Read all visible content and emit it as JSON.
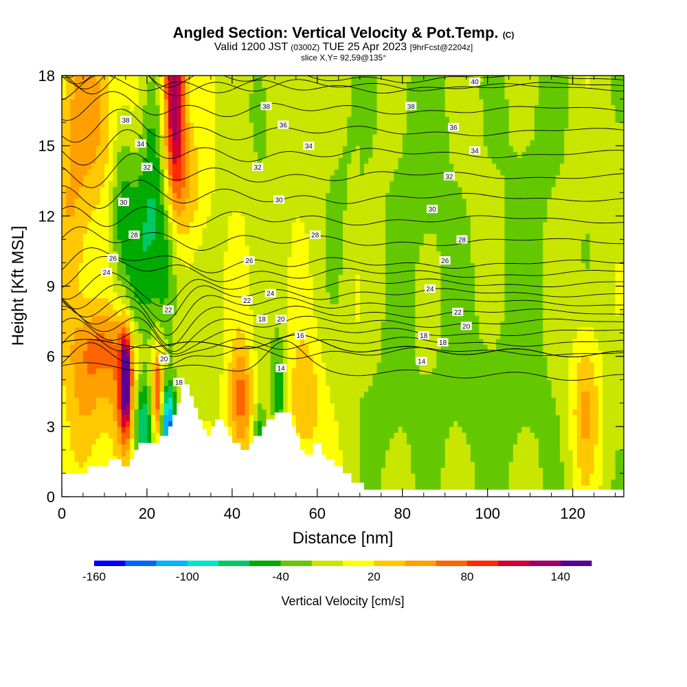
{
  "header": {
    "title_main": "Angled Section: Vertical Velocity & Pot.Temp.",
    "title_unit": "(C)",
    "valid_prefix": "Valid 1200 JST",
    "valid_utc": "(0300Z)",
    "valid_date": "TUE 25 Apr 2023",
    "forecast": "[9hrFcst@2204z]",
    "slice": "slice X,Y= 92,59@135°"
  },
  "chart_data": {
    "type": "heatmap",
    "xlabel": "Distance [nm]",
    "ylabel": "Height [Kft MSL]",
    "xlim": [
      0,
      132
    ],
    "ylim": [
      0,
      18
    ],
    "x_ticks": [
      "0",
      "20",
      "40",
      "60",
      "80",
      "100",
      "120"
    ],
    "x_tick_values": [
      0,
      20,
      40,
      60,
      80,
      100,
      120
    ],
    "y_ticks": [
      "0",
      "3",
      "6",
      "9",
      "12",
      "15",
      "18"
    ],
    "y_tick_values": [
      0,
      3,
      6,
      9,
      12,
      15,
      18
    ],
    "colorbar": {
      "label": "Vertical Velocity [cm/s]",
      "tick_labels": [
        "-160",
        "-100",
        "-40",
        "20",
        "80",
        "140"
      ],
      "tick_values": [
        -160,
        -100,
        -40,
        20,
        80,
        140
      ],
      "range": [
        -160,
        160
      ],
      "colors": [
        "#0000ff",
        "#0064ff",
        "#00b4ff",
        "#00e6c8",
        "#00c864",
        "#00aa00",
        "#64c800",
        "#c8e600",
        "#ffff00",
        "#ffc800",
        "#ffa000",
        "#ff6400",
        "#ff2800",
        "#d20032",
        "#a00064",
        "#5a0096"
      ]
    },
    "terrain": [
      [
        0,
        1
      ],
      [
        5,
        1
      ],
      [
        6,
        1.3
      ],
      [
        10,
        1.3
      ],
      [
        11,
        1.6
      ],
      [
        13,
        1.6
      ],
      [
        14,
        1.3
      ],
      [
        15,
        1.3
      ],
      [
        16,
        1.6
      ],
      [
        17,
        2
      ],
      [
        18,
        2.3
      ],
      [
        22,
        2.3
      ],
      [
        23,
        2.6
      ],
      [
        24,
        2.6
      ],
      [
        25,
        3
      ],
      [
        26,
        3.5
      ],
      [
        27,
        4
      ],
      [
        28,
        4.8
      ],
      [
        29,
        4.8
      ],
      [
        30,
        4.3
      ],
      [
        31,
        3.8
      ],
      [
        32,
        3.3
      ],
      [
        33,
        2.9
      ],
      [
        34,
        2.6
      ],
      [
        35,
        3
      ],
      [
        36,
        3.3
      ],
      [
        38,
        3
      ],
      [
        39,
        2.6
      ],
      [
        40,
        2.3
      ],
      [
        41,
        2.3
      ],
      [
        42,
        2
      ],
      [
        43,
        2
      ],
      [
        44,
        2.3
      ],
      [
        45,
        2.6
      ],
      [
        46,
        2.6
      ],
      [
        47,
        3
      ],
      [
        48,
        3.3
      ],
      [
        50,
        3.6
      ],
      [
        53,
        3.6
      ],
      [
        54,
        3
      ],
      [
        55,
        2.6
      ],
      [
        56,
        2
      ],
      [
        57,
        1.8
      ],
      [
        58,
        1.8
      ],
      [
        59,
        2.3
      ],
      [
        60,
        2.3
      ],
      [
        61,
        1.8
      ],
      [
        62,
        1.6
      ],
      [
        64,
        1.3
      ],
      [
        66,
        1
      ],
      [
        68,
        0.6
      ],
      [
        71,
        0.3
      ],
      [
        132,
        0.3
      ]
    ],
    "velocity_field": [
      {
        "x": 26.5,
        "y": 17.2,
        "sx": 1.8,
        "sy": 3.8,
        "v": 155
      },
      {
        "x": 8,
        "y": 16.5,
        "sx": 5,
        "sy": 2.8,
        "v": 55
      },
      {
        "x": 14,
        "y": 12.5,
        "sx": 2,
        "sy": 3,
        "v": -45
      },
      {
        "x": 18,
        "y": 10.5,
        "sx": 2.5,
        "sy": 2.8,
        "v": -35
      },
      {
        "x": 25,
        "y": 10.5,
        "sx": 2.5,
        "sy": 2.8,
        "v": -65
      },
      {
        "x": 21,
        "y": 15,
        "sx": 2,
        "sy": 3,
        "v": -40
      },
      {
        "x": 2,
        "y": 11,
        "sx": 3,
        "sy": 3,
        "v": 45
      },
      {
        "x": 15,
        "y": 5,
        "sx": 0.9,
        "sy": 1.4,
        "v": 150
      },
      {
        "x": 14.5,
        "y": 4,
        "sx": 2.5,
        "sy": 2.5,
        "v": 55
      },
      {
        "x": 19,
        "y": 3,
        "sx": 1.5,
        "sy": 1.4,
        "v": -90
      },
      {
        "x": 22.5,
        "y": 4.5,
        "sx": 1,
        "sy": 1.4,
        "v": 95
      },
      {
        "x": 25,
        "y": 3,
        "sx": 1.2,
        "sy": 1.3,
        "v": -120
      },
      {
        "x": 6,
        "y": 4.5,
        "sx": 4,
        "sy": 2.2,
        "v": 45
      },
      {
        "x": 42,
        "y": 4,
        "sx": 2,
        "sy": 1.8,
        "v": 75
      },
      {
        "x": 46.5,
        "y": 2.5,
        "sx": 1.2,
        "sy": 1,
        "v": -60
      },
      {
        "x": 51,
        "y": 4.5,
        "sx": 1.2,
        "sy": 1.5,
        "v": -55
      },
      {
        "x": 57,
        "y": 4,
        "sx": 3,
        "sy": 2,
        "v": 42
      },
      {
        "x": 123,
        "y": 4,
        "sx": 2.5,
        "sy": 2.5,
        "v": 55
      },
      {
        "x": 47,
        "y": 16.5,
        "sx": 2,
        "sy": 2.2,
        "v": -30
      },
      {
        "x": 65,
        "y": 15,
        "sx": 4,
        "sy": 4,
        "v": -18
      },
      {
        "x": 85,
        "y": 14,
        "sx": 6,
        "sy": 5,
        "v": -20
      },
      {
        "x": 110,
        "y": 13,
        "sx": 6,
        "sy": 6,
        "v": -15
      },
      {
        "x": 100,
        "y": 4,
        "sx": 10,
        "sy": 3,
        "v": -18
      },
      {
        "x": 76,
        "y": 3,
        "sx": 5,
        "sy": 2.5,
        "v": -15
      },
      {
        "x": 30,
        "y": 13,
        "sx": 3,
        "sy": 2,
        "v": 35
      },
      {
        "x": 9,
        "y": 6.5,
        "sx": 5,
        "sy": 1.2,
        "v": 40
      }
    ],
    "contour_lines": [
      14,
      16,
      18,
      20,
      22,
      24,
      26,
      28,
      30,
      32,
      34,
      36,
      38,
      40
    ],
    "contour_labels": [
      {
        "text": "40",
        "x": 97,
        "y": 17.75
      },
      {
        "text": "38",
        "x": 48,
        "y": 16.7
      },
      {
        "text": "38",
        "x": 82,
        "y": 16.7
      },
      {
        "text": "38",
        "x": 15,
        "y": 16.1
      },
      {
        "text": "36",
        "x": 52,
        "y": 15.9
      },
      {
        "text": "36",
        "x": 92,
        "y": 15.8
      },
      {
        "text": "34",
        "x": 18.5,
        "y": 15.1
      },
      {
        "text": "34",
        "x": 58,
        "y": 15
      },
      {
        "text": "34",
        "x": 97,
        "y": 14.8
      },
      {
        "text": "32",
        "x": 20,
        "y": 14.1
      },
      {
        "text": "32",
        "x": 46,
        "y": 14.1
      },
      {
        "text": "32",
        "x": 91,
        "y": 13.7
      },
      {
        "text": "30",
        "x": 14.5,
        "y": 12.6
      },
      {
        "text": "30",
        "x": 51,
        "y": 12.7
      },
      {
        "text": "30",
        "x": 87,
        "y": 12.3
      },
      {
        "text": "28",
        "x": 17,
        "y": 11.2
      },
      {
        "text": "28",
        "x": 59.5,
        "y": 11.2
      },
      {
        "text": "28",
        "x": 94,
        "y": 11
      },
      {
        "text": "26",
        "x": 12,
        "y": 10.2
      },
      {
        "text": "26",
        "x": 44,
        "y": 10.1
      },
      {
        "text": "26",
        "x": 90,
        "y": 10.1
      },
      {
        "text": "24",
        "x": 10.5,
        "y": 9.6
      },
      {
        "text": "24",
        "x": 49,
        "y": 8.7
      },
      {
        "text": "24",
        "x": 86.5,
        "y": 8.9
      },
      {
        "text": "22",
        "x": 25,
        "y": 8
      },
      {
        "text": "22",
        "x": 43.5,
        "y": 8.4
      },
      {
        "text": "22",
        "x": 93,
        "y": 7.9
      },
      {
        "text": "20",
        "x": 51.5,
        "y": 7.6
      },
      {
        "text": "20",
        "x": 95,
        "y": 7.3
      },
      {
        "text": "18",
        "x": 47,
        "y": 7.6
      },
      {
        "text": "18",
        "x": 85,
        "y": 6.9
      },
      {
        "text": "18",
        "x": 89.5,
        "y": 6.6
      },
      {
        "text": "18",
        "x": 27.5,
        "y": 4.9
      },
      {
        "text": "20",
        "x": 24,
        "y": 5.9
      },
      {
        "text": "16",
        "x": 56,
        "y": 6.9
      },
      {
        "text": "14",
        "x": 51.5,
        "y": 5.5
      },
      {
        "text": "14",
        "x": 84.5,
        "y": 5.8
      }
    ]
  }
}
